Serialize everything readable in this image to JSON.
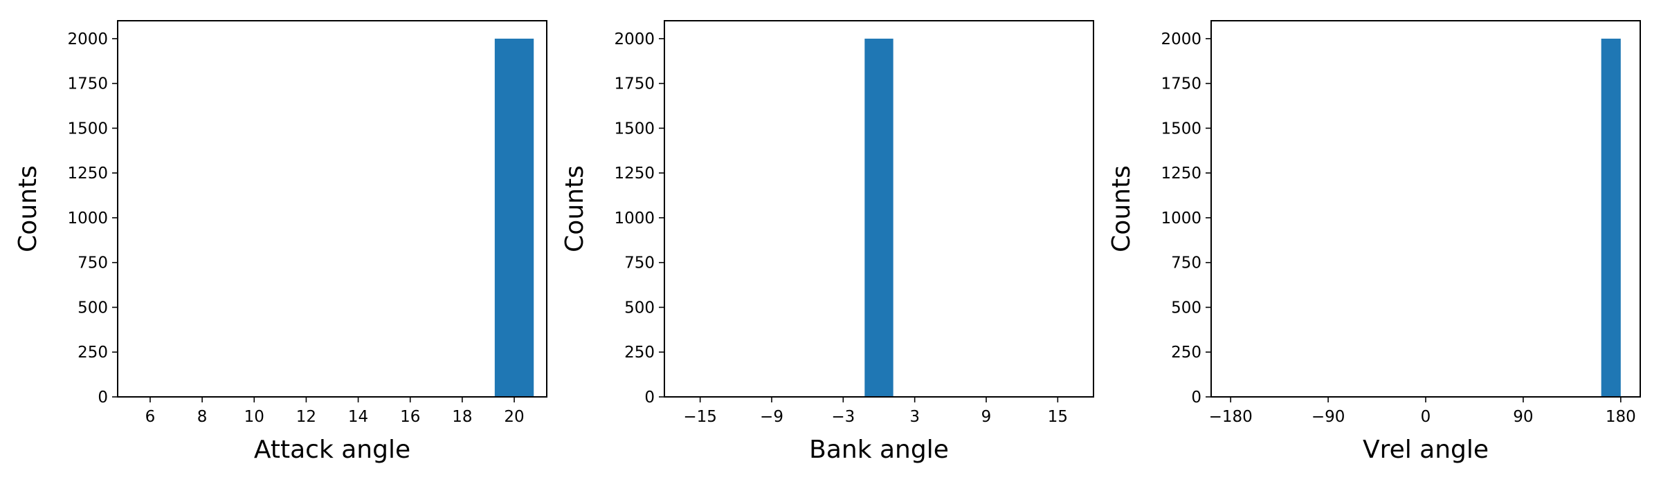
{
  "chart_data": [
    {
      "type": "bar",
      "xlabel": "Attack angle",
      "ylabel": "Counts",
      "xlim": [
        4.75,
        21.25
      ],
      "ylim": [
        0,
        2100
      ],
      "xticks": [
        6,
        8,
        10,
        12,
        14,
        16,
        18,
        20
      ],
      "xtick_labels": [
        "6",
        "8",
        "10",
        "12",
        "14",
        "16",
        "18",
        "20"
      ],
      "yticks": [
        0,
        250,
        500,
        750,
        1000,
        1250,
        1500,
        1750,
        2000
      ],
      "ytick_labels": [
        "0",
        "250",
        "500",
        "750",
        "1000",
        "1250",
        "1500",
        "1750",
        "2000"
      ],
      "bars": [
        {
          "x0": 19.25,
          "x1": 20.75,
          "value": 2000
        }
      ],
      "color": "#1f77b4",
      "grid": false
    },
    {
      "type": "bar",
      "xlabel": "Bank angle",
      "ylabel": "Counts",
      "xlim": [
        -18,
        18
      ],
      "ylim": [
        0,
        2100
      ],
      "xticks": [
        -15,
        -9,
        -3,
        3,
        9,
        15
      ],
      "xtick_labels": [
        "−15",
        "−9",
        "−3",
        "3",
        "9",
        "15"
      ],
      "yticks": [
        0,
        250,
        500,
        750,
        1000,
        1250,
        1500,
        1750,
        2000
      ],
      "ytick_labels": [
        "0",
        "250",
        "500",
        "750",
        "1000",
        "1250",
        "1500",
        "1750",
        "2000"
      ],
      "bars": [
        {
          "x0": -1.2,
          "x1": 1.2,
          "value": 2000
        }
      ],
      "color": "#1f77b4",
      "grid": false
    },
    {
      "type": "bar",
      "xlabel": "Vrel angle",
      "ylabel": "Counts",
      "xlim": [
        -198,
        198
      ],
      "ylim": [
        0,
        2100
      ],
      "xticks": [
        -180,
        -90,
        0,
        90,
        180
      ],
      "xtick_labels": [
        "−180",
        "−90",
        "0",
        "90",
        "180"
      ],
      "yticks": [
        0,
        250,
        500,
        750,
        1000,
        1250,
        1500,
        1750,
        2000
      ],
      "ytick_labels": [
        "0",
        "250",
        "500",
        "750",
        "1000",
        "1250",
        "1500",
        "1750",
        "2000"
      ],
      "bars": [
        {
          "x0": 162,
          "x1": 180,
          "value": 2000
        }
      ],
      "color": "#1f77b4",
      "grid": false
    }
  ]
}
